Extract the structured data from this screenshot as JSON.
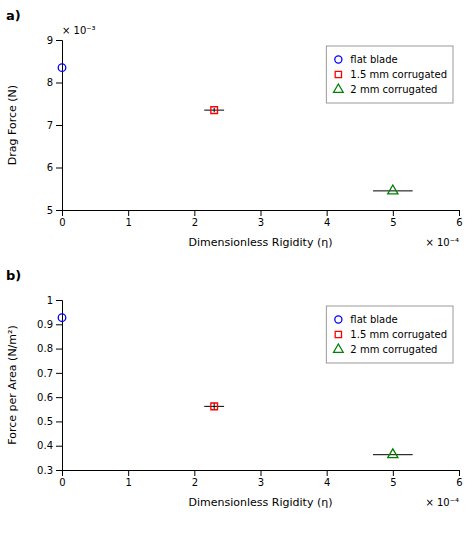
{
  "chart_data": [
    {
      "type": "scatter",
      "title": "a)",
      "x_label": "Dimensionless Rigidity (η)",
      "y_label": "Drag Force (N)",
      "xlim": [
        0,
        0.0006
      ],
      "ylim": [
        0.005,
        0.009
      ],
      "xticks": [
        0,
        {
          "value": 0.0001,
          "label": "1"
        },
        {
          "value": 0.0002,
          "label": "2"
        },
        {
          "value": 0.0003,
          "label": "3"
        },
        {
          "value": 0.0004,
          "label": "4"
        },
        {
          "value": 0.0005,
          "label": "5"
        },
        {
          "value": 0.0006,
          "label": "6"
        }
      ],
      "yticks": [
        {
          "value": 0.005,
          "label": "5"
        },
        {
          "value": 0.006,
          "label": "6"
        },
        {
          "value": 0.007,
          "label": "7"
        },
        {
          "value": 0.008,
          "label": "8"
        },
        {
          "value": 0.009,
          "label": "9"
        }
      ],
      "annotations": [
        {
          "text": "× 10⁻⁴",
          "axis": "x"
        },
        {
          "text": "× 10⁻³",
          "axis": "y"
        }
      ],
      "grid": false,
      "legend": "top-right",
      "series": [
        {
          "name": "flat blade",
          "color": "blue",
          "marker": "circle",
          "x": [
            0.0
          ],
          "values": [
            0.00835
          ],
          "x_errors": [
            null
          ],
          "y_errors": [
            null
          ]
        },
        {
          "name": "1.5 mm corrugated",
          "color": "red",
          "marker": "square",
          "x": [
            0.00023
          ],
          "values": [
            0.00735
          ],
          "x_errors": [
            1.5e-05
          ],
          "y_errors": [
            5e-05
          ]
        },
        {
          "name": "2 mm corrugated",
          "color": "green",
          "marker": "triangle",
          "x": [
            0.0005
          ],
          "values": [
            0.00545
          ],
          "x_errors": [
            3e-05
          ],
          "y_errors": [
            null
          ]
        }
      ]
    },
    {
      "type": "scatter",
      "title": "b)",
      "x_label": "Dimensionless Rigidity (η)",
      "y_label": "Force per Area (N/m²)",
      "xlim": [
        0,
        0.0006
      ],
      "ylim": [
        0.3,
        1.0
      ],
      "xticks": [
        0,
        {
          "value": 0.0001,
          "label": "1"
        },
        {
          "value": 0.0002,
          "label": "2"
        },
        {
          "value": 0.0003,
          "label": "3"
        },
        {
          "value": 0.0004,
          "label": "4"
        },
        {
          "value": 0.0005,
          "label": "5"
        },
        {
          "value": 0.0006,
          "label": "6"
        }
      ],
      "yticks": [
        0.3,
        0.4,
        0.5,
        0.6,
        0.7,
        0.8,
        0.9,
        1
      ],
      "annotations": [
        {
          "text": "× 10⁻⁴",
          "axis": "x"
        }
      ],
      "grid": false,
      "legend": "top-right",
      "series": [
        {
          "name": "flat blade",
          "color": "blue",
          "marker": "circle",
          "x": [
            0.0
          ],
          "values": [
            0.927
          ],
          "x_errors": [
            null
          ],
          "y_errors": [
            null
          ]
        },
        {
          "name": "1.5 mm corrugated",
          "color": "red",
          "marker": "square",
          "x": [
            0.00023
          ],
          "values": [
            0.562
          ],
          "x_errors": [
            1.5e-05
          ],
          "y_errors": [
            0.015
          ]
        },
        {
          "name": "2 mm corrugated",
          "color": "green",
          "marker": "triangle",
          "x": [
            0.0005
          ],
          "values": [
            0.363
          ],
          "x_errors": [
            3e-05
          ],
          "y_errors": [
            null
          ]
        }
      ]
    }
  ]
}
